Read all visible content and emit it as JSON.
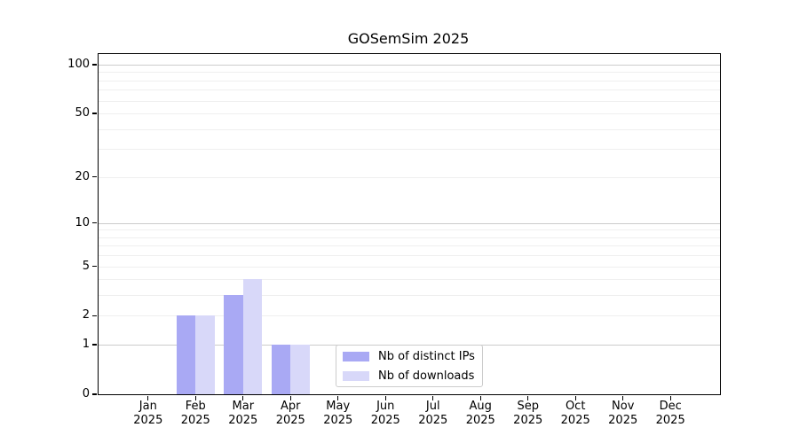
{
  "figure": {
    "background_color": "#ffffff",
    "axis_color": "#000000",
    "grid_major_color": "#cccccc",
    "grid_minor_color": "#efefef"
  },
  "chart_data": {
    "type": "bar",
    "title": "GOSemSim 2025",
    "y_scale": "log1p",
    "ylim": [
      0,
      112
    ],
    "y_ticks": [
      0,
      1,
      2,
      5,
      10,
      20,
      50,
      100
    ],
    "y_major_gridlines": [
      1,
      10,
      100
    ],
    "y_minor_gridlines": [
      2,
      3,
      4,
      5,
      6,
      7,
      8,
      9,
      20,
      30,
      40,
      50,
      60,
      70,
      80,
      90
    ],
    "categories": [
      "Jan",
      "Feb",
      "Mar",
      "Apr",
      "May",
      "Jun",
      "Jul",
      "Aug",
      "Sep",
      "Oct",
      "Nov",
      "Dec"
    ],
    "x_year_label": "2025",
    "series": [
      {
        "name": "Nb of distinct IPs",
        "color": "#a9a9f4",
        "values": [
          0,
          2,
          3,
          1,
          0,
          0,
          0,
          0,
          0,
          0,
          0,
          0
        ]
      },
      {
        "name": "Nb of downloads",
        "color": "#d8d8f9",
        "values": [
          0,
          2,
          4,
          1,
          0,
          0,
          0,
          0,
          0,
          0,
          0,
          0
        ]
      }
    ],
    "legend": {
      "position": "lower center-right inside plot",
      "border_color": "#cccccc"
    }
  }
}
